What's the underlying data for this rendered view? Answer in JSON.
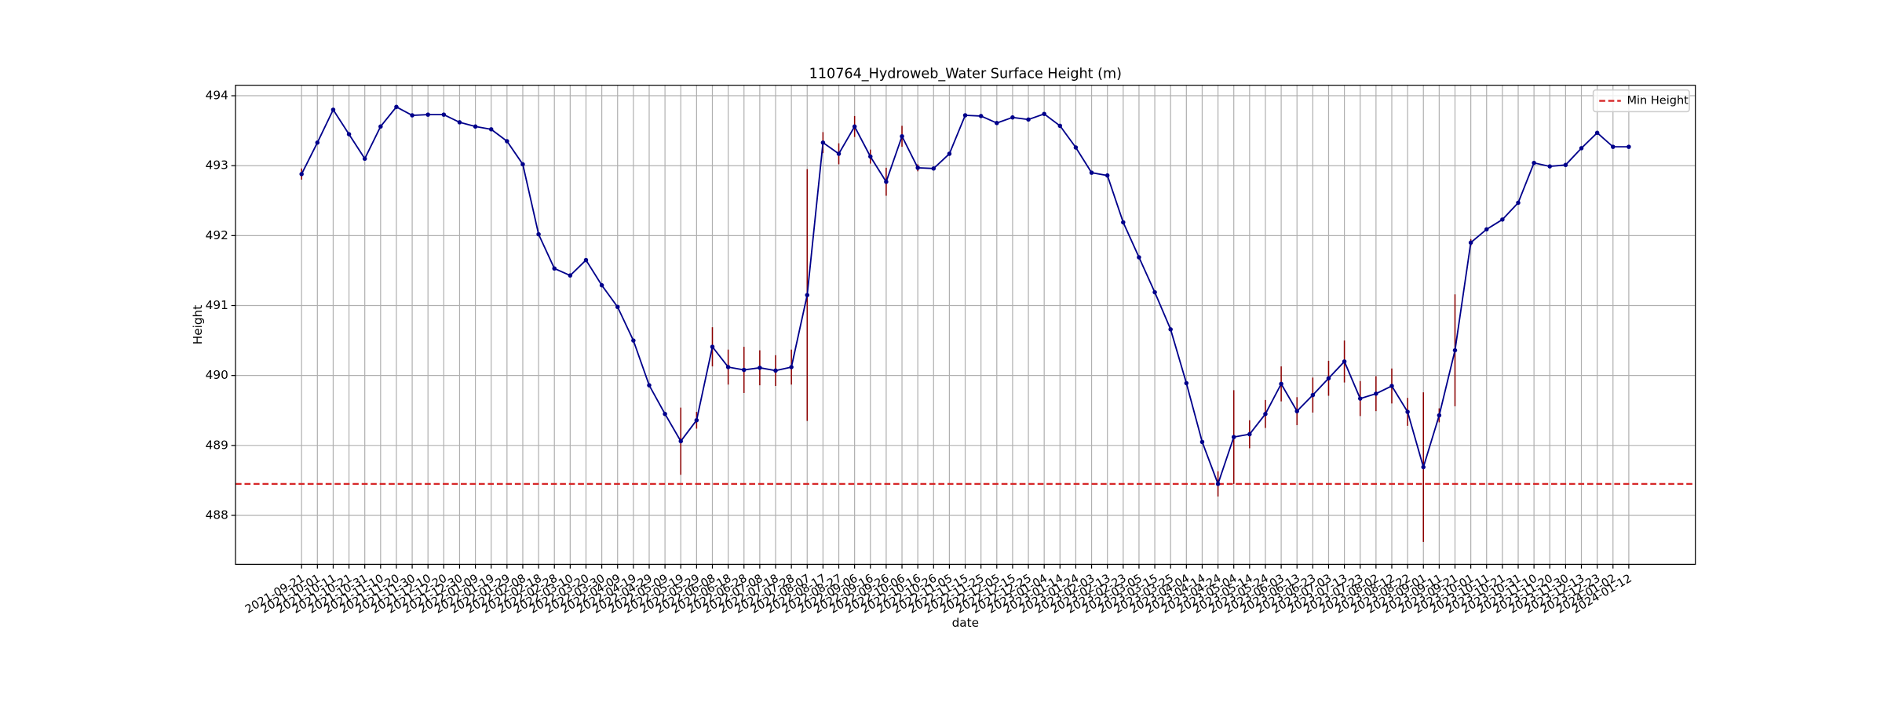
{
  "chart_data": {
    "type": "line",
    "title": "110764_Hydroweb_Water Surface Height (m)",
    "x_label": "date",
    "y_label": "Height",
    "categories": [
      "2021-09-21",
      "2021-10-01",
      "2021-10-11",
      "2021-10-21",
      "2021-10-31",
      "2021-11-10",
      "2021-11-20",
      "2021-11-30",
      "2021-12-10",
      "2021-12-20",
      "2021-12-30",
      "2022-01-09",
      "2022-01-19",
      "2022-01-29",
      "2022-02-08",
      "2022-02-18",
      "2022-02-28",
      "2022-03-10",
      "2022-03-20",
      "2022-03-30",
      "2022-04-09",
      "2022-04-19",
      "2022-04-29",
      "2022-05-09",
      "2022-05-19",
      "2022-05-29",
      "2022-06-08",
      "2022-06-18",
      "2022-06-28",
      "2022-07-08",
      "2022-07-18",
      "2022-07-28",
      "2022-08-07",
      "2022-08-17",
      "2022-08-27",
      "2022-09-06",
      "2022-09-16",
      "2022-09-26",
      "2022-10-06",
      "2022-10-16",
      "2022-10-26",
      "2022-11-05",
      "2022-11-15",
      "2022-11-25",
      "2022-12-05",
      "2022-12-15",
      "2022-12-25",
      "2023-01-04",
      "2023-01-14",
      "2023-01-24",
      "2023-02-03",
      "2023-02-13",
      "2023-02-23",
      "2023-03-05",
      "2023-03-15",
      "2023-03-25",
      "2023-04-04",
      "2023-04-14",
      "2023-04-24",
      "2023-05-04",
      "2023-05-14",
      "2023-05-24",
      "2023-06-03",
      "2023-06-13",
      "2023-06-23",
      "2023-07-03",
      "2023-07-13",
      "2023-07-23",
      "2023-08-02",
      "2023-08-12",
      "2023-08-22",
      "2023-09-01",
      "2023-09-11",
      "2023-09-21",
      "2023-10-01",
      "2023-10-11",
      "2023-10-21",
      "2023-10-31",
      "2023-11-10",
      "2023-11-20",
      "2023-11-30",
      "2023-12-13",
      "2023-12-23",
      "2024-01-02",
      "2024-01-12"
    ],
    "series": [
      {
        "name": "Height",
        "color": "#00008b",
        "error_color": "#8b0000",
        "values": [
          492.88,
          493.33,
          493.8,
          493.45,
          493.1,
          493.56,
          493.84,
          493.72,
          493.73,
          493.73,
          493.62,
          493.56,
          493.52,
          493.35,
          493.02,
          492.02,
          491.53,
          491.43,
          491.65,
          491.29,
          490.98,
          490.5,
          489.86,
          489.45,
          489.06,
          489.36,
          490.41,
          490.12,
          490.08,
          490.11,
          490.07,
          490.12,
          491.15,
          493.33,
          493.17,
          493.56,
          493.13,
          492.77,
          493.42,
          492.97,
          492.96,
          493.17,
          493.72,
          493.71,
          493.61,
          493.69,
          493.66,
          493.74,
          493.57,
          493.26,
          492.9,
          492.86,
          492.19,
          491.69,
          491.19,
          490.66,
          489.89,
          489.05,
          488.45,
          489.12,
          489.16,
          489.45,
          489.88,
          489.49,
          489.72,
          489.96,
          490.2,
          489.67,
          489.74,
          489.85,
          489.48,
          488.69,
          489.43,
          490.36,
          491.9,
          492.09,
          492.23,
          492.47,
          493.04,
          492.99,
          493.01,
          493.25,
          493.47,
          493.27,
          493.27
        ],
        "errors": [
          0.08,
          0.02,
          0.02,
          0.02,
          0.02,
          0.02,
          0.02,
          0.02,
          0.02,
          0.02,
          0.02,
          0.02,
          0.02,
          0.02,
          0.02,
          0.02,
          0.02,
          0.02,
          0.02,
          0.02,
          0.02,
          0.02,
          0.02,
          0.02,
          0.48,
          0.12,
          0.28,
          0.25,
          0.33,
          0.25,
          0.22,
          0.25,
          1.8,
          0.15,
          0.15,
          0.15,
          0.1,
          0.2,
          0.15,
          0.05,
          0.02,
          0.02,
          0.02,
          0.02,
          0.02,
          0.02,
          0.02,
          0.02,
          0.02,
          0.02,
          0.02,
          0.02,
          0.02,
          0.02,
          0.02,
          0.02,
          0.02,
          0.02,
          0.18,
          0.67,
          0.2,
          0.2,
          0.25,
          0.2,
          0.25,
          0.25,
          0.3,
          0.25,
          0.25,
          0.25,
          0.2,
          1.07,
          0.1,
          0.8,
          0.05,
          0.02,
          0.02,
          0.02,
          0.02,
          0.02,
          0.02,
          0.02,
          0.02,
          0.02,
          0.02
        ]
      }
    ],
    "reference_line": {
      "name": "Min Height",
      "value": 488.45,
      "color": "#d62728",
      "dashed": true
    },
    "ylim": [
      487.3,
      494.15
    ],
    "yticks": [
      488,
      489,
      490,
      491,
      492,
      493,
      494
    ],
    "grid": true,
    "legend": "upper right"
  }
}
